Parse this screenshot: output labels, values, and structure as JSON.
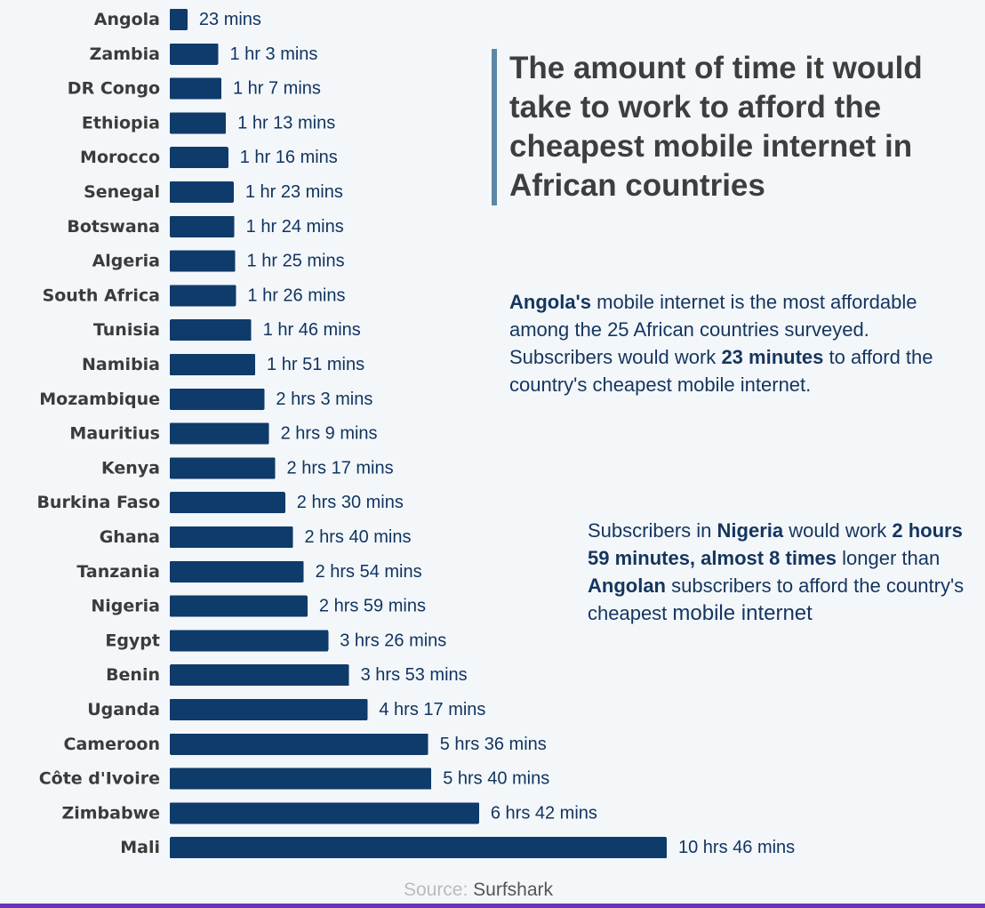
{
  "colors": {
    "bar": "#0f3b6b",
    "value_text": "#10335e",
    "title": "#3e3e3e",
    "accent": "#5d87a6",
    "note_text": "#15355e",
    "bottom_line": "#6a34b6"
  },
  "title": "The amount of time it would take to work to afford the cheapest mobile internet in African countries",
  "note1": {
    "p1": "Angola's",
    "p2": " mobile internet is the most affordable among the 25 African countries surveyed. Subscribers would work ",
    "p3": "23 minutes",
    "p4": " to afford the country's cheapest mobile internet."
  },
  "note2": {
    "p1": "Subscribers in ",
    "p2": "Nigeria",
    "p3": " would work ",
    "p4": "2 hours 59 minutes, almost 8 times",
    "p5": " longer than ",
    "p6": "Angolan",
    "p7": " subscribers to afford the country's cheapest ",
    "p8": "mobile internet"
  },
  "source": {
    "label": "Source:",
    "org": "Surfshark"
  },
  "chart_data": {
    "type": "bar",
    "orientation": "horizontal",
    "title": "The amount of time it would take to work to afford the cheapest mobile internet in African countries",
    "xlabel": "",
    "ylabel": "",
    "unit": "minutes",
    "xlim": [
      0,
      646
    ],
    "grid": false,
    "categories": [
      "Angola",
      "Zambia",
      "DR Congo",
      "Ethiopia",
      "Morocco",
      "Senegal",
      "Botswana",
      "Algeria",
      "South Africa",
      "Tunisia",
      "Namibia",
      "Mozambique",
      "Mauritius",
      "Kenya",
      "Burkina Faso",
      "Ghana",
      "Tanzania",
      "Nigeria",
      "Egypt",
      "Benin",
      "Uganda",
      "Cameroon",
      "Côte d'Ivoire",
      "Zimbabwe",
      "Mali"
    ],
    "values": [
      23,
      63,
      67,
      73,
      76,
      83,
      84,
      85,
      86,
      106,
      111,
      123,
      129,
      137,
      150,
      160,
      174,
      179,
      206,
      233,
      257,
      336,
      340,
      402,
      646
    ],
    "value_labels": [
      "23 mins",
      "1 hr 3 mins",
      "1 hr 7 mins",
      "1 hr 13 mins",
      "1 hr 16 mins",
      "1 hr 23 mins",
      "1 hr 24 mins",
      "1 hr 25 mins",
      "1 hr 26 mins",
      "1 hr 46 mins",
      "1 hr 51 mins",
      "2 hrs 3 mins",
      "2 hrs 9 mins",
      "2 hrs 17 mins",
      "2 hrs 30 mins",
      "2 hrs 40 mins",
      "2 hrs 54 mins",
      "2 hrs 59 mins",
      "3 hrs 26 mins",
      "3 hrs 53 mins",
      "4 hrs 17 mins",
      "5 hrs 36 mins",
      "5 hrs 40 mins",
      "6 hrs 42 mins",
      "10 hrs 46 mins"
    ]
  }
}
